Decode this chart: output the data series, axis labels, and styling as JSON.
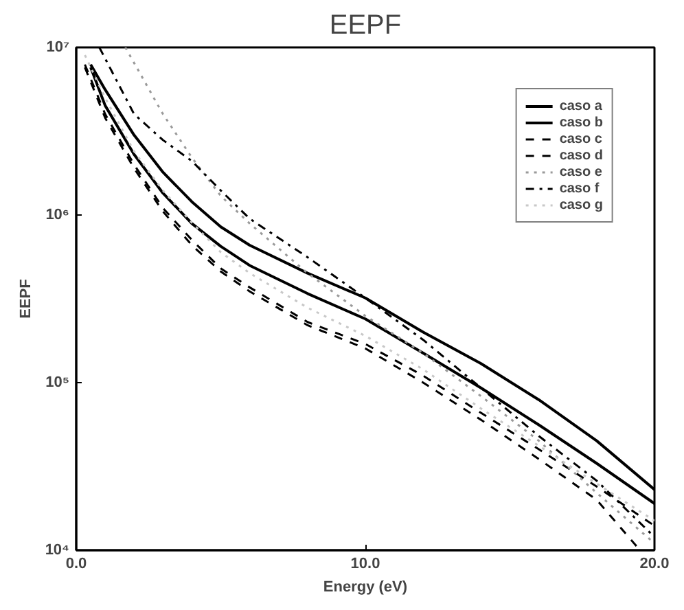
{
  "chart_data": {
    "type": "line",
    "title": "EEPF",
    "xlabel": "Energy (eV)",
    "ylabel": "EEPF",
    "log": "y",
    "xlim": [
      0,
      20
    ],
    "xticks": [
      {
        "value": 0,
        "label": "0.0"
      },
      {
        "value": 10,
        "label": "10.0"
      },
      {
        "value": 20,
        "label": "20.0"
      }
    ],
    "ylim": [
      10000,
      10000000
    ],
    "yticks": [
      {
        "value": 10000,
        "label": "10⁴"
      },
      {
        "value": 100000,
        "label": "10⁵"
      },
      {
        "value": 1000000,
        "label": "10⁶"
      },
      {
        "value": 10000000,
        "label": "10⁷"
      }
    ],
    "grid": false,
    "legend": "top right",
    "marker": "none",
    "series": [
      {
        "name": "caso a",
        "color": "#000000",
        "line_style": "solid",
        "x": [
          0.5,
          1,
          2,
          3,
          4,
          5,
          6,
          8,
          10,
          12,
          14,
          16,
          18,
          20
        ],
        "values": [
          7900000.0,
          5600000.0,
          3000000.0,
          1800000.0,
          1200000.0,
          850000.0,
          660000.0,
          450000.0,
          320000.0,
          200000.0,
          130000.0,
          79000.0,
          45000.0,
          23000.0
        ]
      },
      {
        "name": "caso b",
        "color": "#000000",
        "line_style": "solid",
        "x": [
          0.5,
          1,
          2,
          3,
          4,
          5,
          6,
          8,
          10,
          12,
          14,
          16,
          18,
          20
        ],
        "values": [
          7600000.0,
          4500000.0,
          2300000.0,
          1350000.0,
          890000.0,
          650000.0,
          500000.0,
          340000.0,
          240000.0,
          150000.0,
          93000.0,
          56000.0,
          33000.0,
          19000.0
        ]
      },
      {
        "name": "caso c",
        "color": "#000000",
        "line_style": "dashed",
        "x": [
          0.3,
          1,
          2,
          3,
          4,
          5,
          6,
          8,
          10,
          12,
          14,
          16,
          18,
          20
        ],
        "values": [
          7900000.0,
          4000000.0,
          2000000.0,
          1100000.0,
          710000.0,
          480000.0,
          370000.0,
          230000.0,
          170000.0,
          110000.0,
          66000.0,
          40000.0,
          24000.0,
          14000.0
        ]
      },
      {
        "name": "caso d",
        "color": "#000000",
        "line_style": "dashed",
        "x": [
          0.3,
          1,
          2,
          3,
          4,
          5,
          6,
          8,
          10,
          12,
          14,
          16,
          18,
          19.5
        ],
        "values": [
          7600000.0,
          3800000.0,
          1900000.0,
          1050000.0,
          660000.0,
          460000.0,
          350000.0,
          220000.0,
          160000.0,
          100000.0,
          60000.0,
          35000.0,
          20000.0,
          10000.0
        ]
      },
      {
        "name": "caso e",
        "color": "#9a9a9a",
        "line_style": "dotted",
        "x": [
          1.7,
          3,
          4,
          5,
          6,
          8,
          10,
          12,
          14,
          16,
          18,
          20
        ],
        "values": [
          10000000.0,
          4000000.0,
          2200000.0,
          1300000.0,
          890000.0,
          450000.0,
          250000.0,
          150000.0,
          83000.0,
          45000.0,
          22000.0,
          11000.0
        ]
      },
      {
        "name": "caso f",
        "color": "#000000",
        "line_style": "dashdot",
        "x": [
          0.8,
          2,
          3,
          4,
          5,
          6,
          8,
          10,
          12,
          14,
          16,
          18,
          20
        ],
        "values": [
          10000000.0,
          4000000.0,
          2800000.0,
          2100000.0,
          1400000.0,
          950000.0,
          560000.0,
          320000.0,
          180000.0,
          93000.0,
          48000.0,
          26000.0,
          12000.0
        ]
      },
      {
        "name": "caso g",
        "color": "#c8c8c8",
        "line_style": "dotted",
        "x": [
          0.3,
          1,
          2,
          3,
          4,
          5,
          6,
          8,
          10,
          12,
          14,
          16,
          18,
          20
        ],
        "values": [
          9000000.0,
          5000000.0,
          2400000.0,
          1400000.0,
          900000.0,
          600000.0,
          450000.0,
          280000.0,
          190000.0,
          120000.0,
          70000.0,
          42000.0,
          25000.0,
          15000.0
        ]
      }
    ]
  }
}
